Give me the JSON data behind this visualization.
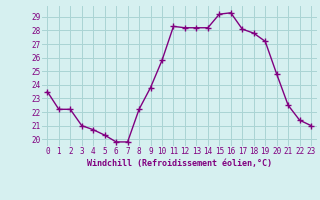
{
  "x": [
    0,
    1,
    2,
    3,
    4,
    5,
    6,
    7,
    8,
    9,
    10,
    11,
    12,
    13,
    14,
    15,
    16,
    17,
    18,
    19,
    20,
    21,
    22,
    23
  ],
  "y": [
    23.5,
    22.2,
    22.2,
    21.0,
    20.7,
    20.3,
    19.8,
    19.8,
    22.2,
    23.8,
    25.8,
    28.3,
    28.2,
    28.2,
    28.2,
    29.2,
    29.3,
    28.1,
    27.8,
    27.2,
    24.8,
    22.5,
    21.4,
    21.0
  ],
  "line_color": "#800080",
  "marker": "+",
  "marker_size": 4,
  "marker_lw": 1.0,
  "bg_color": "#d6f0f0",
  "grid_color": "#aad4d4",
  "xlabel": "Windchill (Refroidissement éolien,°C)",
  "ylim": [
    19.5,
    29.8
  ],
  "xlim": [
    -0.5,
    23.5
  ],
  "yticks": [
    20,
    21,
    22,
    23,
    24,
    25,
    26,
    27,
    28,
    29
  ],
  "xticks": [
    0,
    1,
    2,
    3,
    4,
    5,
    6,
    7,
    8,
    9,
    10,
    11,
    12,
    13,
    14,
    15,
    16,
    17,
    18,
    19,
    20,
    21,
    22,
    23
  ],
  "xtick_labels": [
    "0",
    "1",
    "2",
    "3",
    "4",
    "5",
    "6",
    "7",
    "8",
    "9",
    "10",
    "11",
    "12",
    "13",
    "14",
    "15",
    "16",
    "17",
    "18",
    "19",
    "20",
    "21",
    "22",
    "23"
  ],
  "ytick_labels": [
    "20",
    "21",
    "22",
    "23",
    "24",
    "25",
    "26",
    "27",
    "28",
    "29"
  ],
  "label_color": "#800080",
  "tick_color": "#800080",
  "line_width": 1.0
}
